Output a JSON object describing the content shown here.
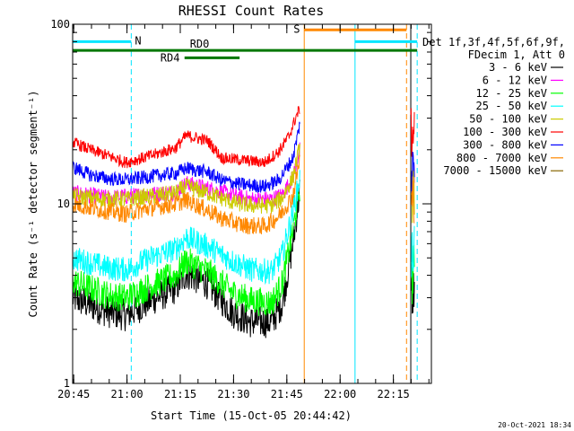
{
  "chart_data": {
    "type": "line",
    "title": "RHESSI Count Rates",
    "xlabel": "Start Time (15-Oct-05 20:44:42)",
    "ylabel": "Count Rate (s⁻¹ detector segment⁻¹)",
    "y_scale": "log",
    "ylim": [
      1,
      100
    ],
    "xlim_minutes": [
      0,
      101
    ],
    "x_tick_labels": [
      "20:45",
      "21:00",
      "21:15",
      "21:30",
      "21:45",
      "22:00",
      "22:15"
    ],
    "x_tick_minutes": [
      0.3,
      15.3,
      30.3,
      45.3,
      60.3,
      75.3,
      90.3
    ],
    "y_tick_labels": [
      "1",
      "10",
      "100"
    ],
    "y_tick_values": [
      1,
      10,
      100
    ],
    "legend_placement": "right",
    "legend_header": [
      "Det 1f,3f,4f,5f,6f,9f,",
      "FDecim 1, Att 0"
    ],
    "series": [
      {
        "name": "3 - 6 keV",
        "color": "#000000",
        "points": [
          [
            0,
            3.0
          ],
          [
            10,
            2.5
          ],
          [
            15,
            2.4
          ],
          [
            22,
            2.9
          ],
          [
            29,
            3.4
          ],
          [
            32,
            4.1
          ],
          [
            38,
            3.6
          ],
          [
            45,
            2.5
          ],
          [
            50,
            2.2
          ],
          [
            56,
            2.2
          ],
          [
            59,
            2.8
          ],
          [
            62,
            6.0
          ],
          [
            64,
            12.0
          ]
        ],
        "tail": [
          [
            95.4,
            3.0
          ],
          [
            96.2,
            3.5
          ]
        ]
      },
      {
        "name": "6 - 12 keV",
        "color": "#ff00ff",
        "points": [
          [
            0,
            11.5
          ],
          [
            10,
            10.8
          ],
          [
            15,
            11.0
          ],
          [
            22,
            11.3
          ],
          [
            29,
            11.6
          ],
          [
            32,
            13.0
          ],
          [
            38,
            12.2
          ],
          [
            45,
            11.2
          ],
          [
            50,
            10.6
          ],
          [
            56,
            10.6
          ],
          [
            59,
            11.2
          ],
          [
            62,
            14.0
          ],
          [
            64,
            20.0
          ]
        ],
        "tail": [
          [
            95.4,
            11.0
          ],
          [
            96.2,
            13.0
          ]
        ]
      },
      {
        "name": "12 - 25 keV",
        "color": "#00ff00",
        "points": [
          [
            0,
            3.7
          ],
          [
            10,
            3.1
          ],
          [
            15,
            3.0
          ],
          [
            22,
            3.5
          ],
          [
            29,
            4.0
          ],
          [
            32,
            4.8
          ],
          [
            38,
            4.2
          ],
          [
            45,
            3.2
          ],
          [
            50,
            2.9
          ],
          [
            56,
            2.8
          ],
          [
            59,
            3.6
          ],
          [
            62,
            7.0
          ],
          [
            64,
            12.5
          ]
        ],
        "tail": [
          [
            95.4,
            3.5
          ],
          [
            96.2,
            4.5
          ]
        ]
      },
      {
        "name": "25 - 50 keV",
        "color": "#00ffff",
        "points": [
          [
            0,
            5.0
          ],
          [
            10,
            4.4
          ],
          [
            15,
            4.3
          ],
          [
            22,
            5.0
          ],
          [
            29,
            5.6
          ],
          [
            32,
            6.5
          ],
          [
            38,
            5.8
          ],
          [
            45,
            4.8
          ],
          [
            50,
            4.3
          ],
          [
            56,
            4.2
          ],
          [
            59,
            5.2
          ],
          [
            62,
            9.0
          ],
          [
            64,
            14.0
          ]
        ],
        "tail": [
          [
            95.4,
            5.0
          ],
          [
            96.2,
            6.0
          ]
        ]
      },
      {
        "name": "50 - 100 keV",
        "color": "#cccc00",
        "points": [
          [
            0,
            11.0
          ],
          [
            10,
            10.6
          ],
          [
            15,
            10.6
          ],
          [
            22,
            11.0
          ],
          [
            29,
            11.5
          ],
          [
            32,
            12.5
          ],
          [
            38,
            11.5
          ],
          [
            45,
            10.2
          ],
          [
            50,
            9.8
          ],
          [
            56,
            9.8
          ],
          [
            59,
            10.8
          ],
          [
            62,
            14.0
          ],
          [
            64,
            21.0
          ]
        ],
        "tail": [
          [
            95.4,
            10.5
          ],
          [
            96.2,
            12.0
          ]
        ]
      },
      {
        "name": "100 - 300 keV",
        "color": "#ff0000",
        "points": [
          [
            0,
            22.0
          ],
          [
            5,
            20.0
          ],
          [
            10,
            18.5
          ],
          [
            15,
            17.0
          ],
          [
            22,
            18.5
          ],
          [
            29,
            20.5
          ],
          [
            32,
            24.0
          ],
          [
            38,
            22.5
          ],
          [
            42,
            18.0
          ],
          [
            48,
            17.5
          ],
          [
            54,
            17.0
          ],
          [
            58,
            19.5
          ],
          [
            61,
            24.0
          ],
          [
            63,
            31.0
          ],
          [
            64,
            34.0
          ]
        ],
        "tail": [
          [
            95.2,
            24.0
          ],
          [
            96.2,
            26.0
          ]
        ]
      },
      {
        "name": "300 - 800 keV",
        "color": "#0000ff",
        "points": [
          [
            0,
            16.0
          ],
          [
            5,
            14.5
          ],
          [
            10,
            13.8
          ],
          [
            15,
            13.6
          ],
          [
            22,
            14.2
          ],
          [
            29,
            14.8
          ],
          [
            32,
            15.8
          ],
          [
            38,
            15.0
          ],
          [
            42,
            13.5
          ],
          [
            48,
            12.8
          ],
          [
            54,
            12.5
          ],
          [
            58,
            13.5
          ],
          [
            62,
            18.0
          ],
          [
            64,
            28.0
          ]
        ],
        "tail": [
          [
            95.4,
            15.0
          ],
          [
            96.2,
            17.0
          ]
        ]
      },
      {
        "name": "800 - 7000 keV",
        "color": "#ff8800",
        "points": [
          [
            0,
            10.0
          ],
          [
            5,
            9.5
          ],
          [
            10,
            9.1
          ],
          [
            15,
            8.8
          ],
          [
            22,
            9.5
          ],
          [
            29,
            10.0
          ],
          [
            32,
            10.5
          ],
          [
            38,
            9.2
          ],
          [
            42,
            8.3
          ],
          [
            48,
            7.6
          ],
          [
            54,
            7.5
          ],
          [
            58,
            8.5
          ],
          [
            62,
            11.0
          ],
          [
            64,
            18.0
          ]
        ],
        "tail": [
          [
            95.4,
            10.0
          ],
          [
            96.2,
            11.0
          ]
        ]
      },
      {
        "name": "7000 - 15000 keV",
        "color": "#886600",
        "points": [],
        "tail": []
      }
    ],
    "annotations": [
      {
        "label": "N",
        "color": "#00e5ff",
        "x0": 0,
        "x1": 16.5,
        "y": 80
      },
      {
        "label": "",
        "color": "#00e5ff",
        "x0": 79.5,
        "x1": 97,
        "y": 80
      },
      {
        "label": "S",
        "color": "#ff8800",
        "x0": 65.2,
        "x1": 94,
        "y": 93
      },
      {
        "label": "RD0",
        "color": "#007700",
        "x0": 0,
        "x1": 97,
        "y": 71.5
      },
      {
        "label": "RD4",
        "color": "#007700",
        "x0": 31.5,
        "x1": 47,
        "y": 65
      }
    ],
    "vertical_lines": [
      {
        "x": 0,
        "color": "#00e5ff",
        "dashed": false
      },
      {
        "x": 16.5,
        "color": "#00e5ff",
        "dashed": true
      },
      {
        "x": 65.2,
        "color": "#ff8800",
        "dashed": false
      },
      {
        "x": 79.5,
        "color": "#00e5ff",
        "dashed": false
      },
      {
        "x": 94,
        "color": "#ff8800",
        "dashed": true
      },
      {
        "x": 95.2,
        "color": "#000000",
        "dashed": false
      },
      {
        "x": 97,
        "color": "#00e5ff",
        "dashed": true
      }
    ]
  },
  "timestamp": "20-Oct-2021 18:34"
}
